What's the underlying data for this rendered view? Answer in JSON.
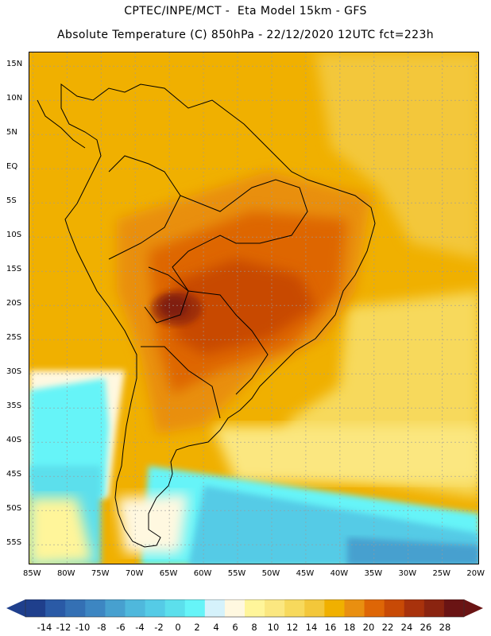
{
  "header": {
    "line1": "CPTEC/INPE/MCT -  Eta Model 15km - GFS",
    "line2": "Absolute Temperature (C) 850hPa - 22/12/2020 12UTC fct=223h"
  },
  "axes": {
    "lat_labels": [
      "15N",
      "10N",
      "5N",
      "EQ",
      "5S",
      "10S",
      "15S",
      "20S",
      "25S",
      "30S",
      "35S",
      "40S",
      "45S",
      "50S",
      "55S"
    ],
    "lon_labels": [
      "85W",
      "80W",
      "75W",
      "70W",
      "65W",
      "60W",
      "55W",
      "50W",
      "45W",
      "40W",
      "35W",
      "30W",
      "25W",
      "20W"
    ]
  },
  "map": {
    "extent": {
      "lon_min": -85.5,
      "lon_max": -19.5,
      "lat_min": -58,
      "lat_max": 17
    },
    "background_color": "#f0b000"
  },
  "legend": {
    "labels": [
      "-14",
      "-12",
      "-10",
      "-8",
      "-6",
      "-4",
      "-2",
      "0",
      "2",
      "4",
      "6",
      "8",
      "10",
      "12",
      "14",
      "16",
      "18",
      "20",
      "22",
      "24",
      "26",
      "28"
    ],
    "colors": [
      "#1f3f8c",
      "#2a5aa6",
      "#3470b4",
      "#3d86c2",
      "#47a0cf",
      "#4fb8dc",
      "#55cbe6",
      "#5cdfec",
      "#66f4f8",
      "#d5f2fb",
      "#fff8e0",
      "#fff59a",
      "#fbe780",
      "#f7d95c",
      "#f3c73a",
      "#f0b000",
      "#e98f10",
      "#de6606",
      "#c84a06",
      "#a8320c",
      "#8a2410",
      "#6a1414"
    ]
  }
}
